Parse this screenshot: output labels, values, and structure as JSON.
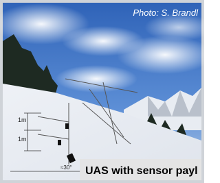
{
  "photo_credit": "Photo: S. Brandl",
  "annotations": {
    "upper_height": "1m",
    "lower_height": "1m",
    "tilt_angle": "≈30°"
  },
  "caption": "UAS with sensor payl"
}
